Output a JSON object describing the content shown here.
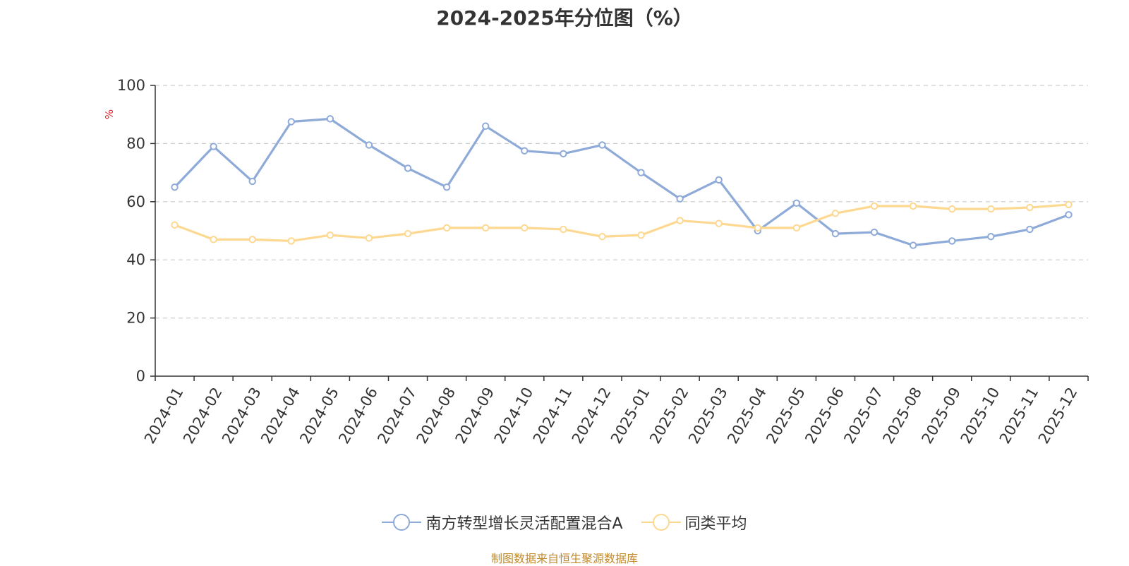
{
  "chart_data": {
    "type": "line",
    "title": "2024-2025年分位图（%）",
    "ylabel": "%",
    "ylim": [
      0,
      100
    ],
    "yticks": [
      0,
      20,
      40,
      60,
      80,
      100
    ],
    "grid": true,
    "legend_position": "bottom",
    "categories": [
      "2024-01",
      "2024-02",
      "2024-03",
      "2024-04",
      "2024-05",
      "2024-06",
      "2024-07",
      "2024-08",
      "2024-09",
      "2024-10",
      "2024-11",
      "2024-12",
      "2025-01",
      "2025-02",
      "2025-03",
      "2025-04",
      "2025-05",
      "2025-06",
      "2025-07",
      "2025-08",
      "2025-09",
      "2025-10",
      "2025-11",
      "2025-12"
    ],
    "series": [
      {
        "name": "南方转型增长灵活配置混合A",
        "color": "#8eaad8",
        "values": [
          65.0,
          79.0,
          67.0,
          87.5,
          88.5,
          79.5,
          71.5,
          65.0,
          86.0,
          77.5,
          76.5,
          79.5,
          70.0,
          61.0,
          67.5,
          50.0,
          59.5,
          49.0,
          49.5,
          45.0,
          46.5,
          48.0,
          50.5,
          55.5
        ]
      },
      {
        "name": "同类平均",
        "color": "#fdd891",
        "values": [
          52.0,
          47.0,
          47.0,
          46.5,
          48.5,
          47.5,
          49.0,
          51.0,
          51.0,
          51.0,
          50.5,
          48.0,
          48.5,
          53.5,
          52.5,
          51.0,
          51.0,
          56.0,
          58.5,
          58.5,
          57.5,
          57.5,
          58.0,
          59.0
        ]
      }
    ]
  },
  "footer": "制图数据来自恒生聚源数据库"
}
